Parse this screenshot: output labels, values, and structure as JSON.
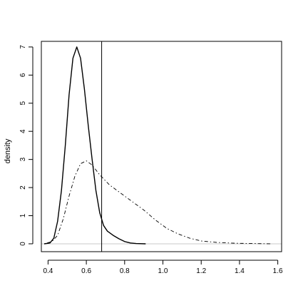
{
  "chart_data": {
    "type": "line",
    "title": "",
    "xlabel": "",
    "ylabel": "density",
    "xlim": [
      0.365,
      1.62
    ],
    "ylim": [
      -0.28,
      7.2
    ],
    "x_ticks": [
      0.4,
      0.6,
      0.8,
      1.0,
      1.2,
      1.4,
      1.6
    ],
    "x_tick_labels": [
      "0.4",
      "0.6",
      "0.8",
      "1.0",
      "1.2",
      "1.4",
      "1.6"
    ],
    "y_ticks": [
      0,
      1,
      2,
      3,
      4,
      5,
      6,
      7
    ],
    "y_tick_labels": [
      "0",
      "1",
      "2",
      "3",
      "4",
      "5",
      "6",
      "7"
    ],
    "grid": false,
    "legend": "none",
    "baseline_y": 0,
    "vline_x": 0.68,
    "series": [
      {
        "style": "solid",
        "x": [
          0.38,
          0.41,
          0.43,
          0.45,
          0.47,
          0.49,
          0.51,
          0.53,
          0.55,
          0.57,
          0.59,
          0.61,
          0.63,
          0.65,
          0.67,
          0.69,
          0.71,
          0.74,
          0.77,
          0.8,
          0.83,
          0.86,
          0.91
        ],
        "y": [
          0.0,
          0.03,
          0.2,
          0.8,
          1.9,
          3.5,
          5.3,
          6.6,
          7.0,
          6.6,
          5.5,
          4.2,
          3.0,
          1.9,
          1.1,
          0.65,
          0.45,
          0.3,
          0.18,
          0.08,
          0.03,
          0.01,
          0.0
        ]
      },
      {
        "style": "dashdot",
        "x": [
          0.38,
          0.42,
          0.45,
          0.48,
          0.51,
          0.54,
          0.57,
          0.6,
          0.63,
          0.67,
          0.72,
          0.78,
          0.84,
          0.9,
          0.96,
          1.02,
          1.08,
          1.14,
          1.2,
          1.28,
          1.38,
          1.48,
          1.57
        ],
        "y": [
          0.0,
          0.08,
          0.3,
          0.9,
          1.7,
          2.4,
          2.85,
          2.95,
          2.8,
          2.45,
          2.1,
          1.8,
          1.5,
          1.2,
          0.85,
          0.55,
          0.35,
          0.2,
          0.1,
          0.05,
          0.02,
          0.01,
          0.0
        ]
      }
    ]
  }
}
